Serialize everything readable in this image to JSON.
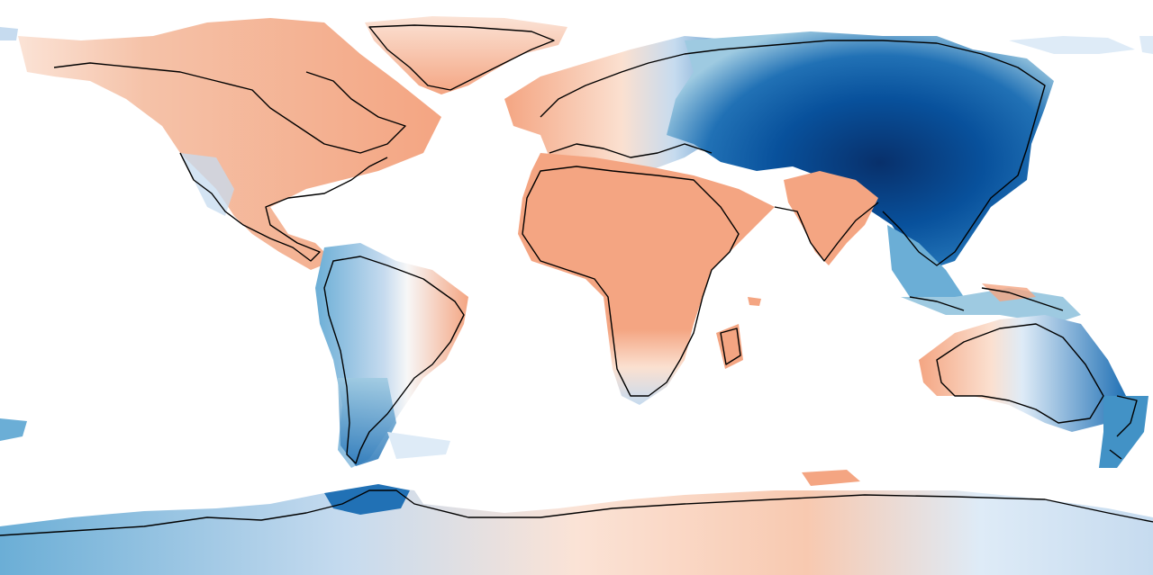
{
  "map": {
    "projection": "equirectangular",
    "colormap": {
      "deep_blue": "#08306b",
      "blue": "#2171b5",
      "mid_blue": "#6baed6",
      "light_blue": "#c6dbef",
      "neutral": "#f7f7f7",
      "light_red": "#fddbc7",
      "red": "#f4a582"
    },
    "coastline_color": "#000000",
    "background": "#ffffff",
    "regions": [
      {
        "name": "north-america",
        "tone": "light_red"
      },
      {
        "name": "greenland",
        "tone": "light_red"
      },
      {
        "name": "south-america",
        "tone": "mid_blue"
      },
      {
        "name": "africa",
        "tone": "red"
      },
      {
        "name": "europe",
        "tone": "light_red"
      },
      {
        "name": "asia",
        "tone": "deep_blue"
      },
      {
        "name": "india",
        "tone": "red"
      },
      {
        "name": "australia",
        "tone": "mid_blue"
      },
      {
        "name": "antarctica",
        "tone": "light_blue"
      }
    ]
  }
}
